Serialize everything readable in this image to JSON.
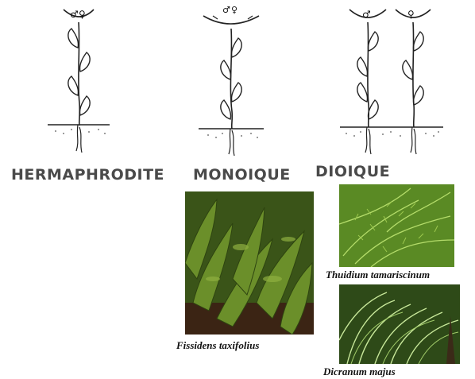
{
  "labels": {
    "hermaphrodite": "HERMAPHRODITE",
    "monoique": "MONOIQUE",
    "dioique": "DIOIQUE"
  },
  "symbols": {
    "male": "♂",
    "female": "♀"
  },
  "photos": {
    "fissidens": {
      "caption": "Fissidens taxifolius",
      "color": "#4a6e1e"
    },
    "thuidium": {
      "caption": "Thuidium tamariscinum",
      "color": "#7fb23a"
    },
    "dicranum": {
      "caption": "Dicranum majus",
      "color": "#8fc45a"
    }
  }
}
